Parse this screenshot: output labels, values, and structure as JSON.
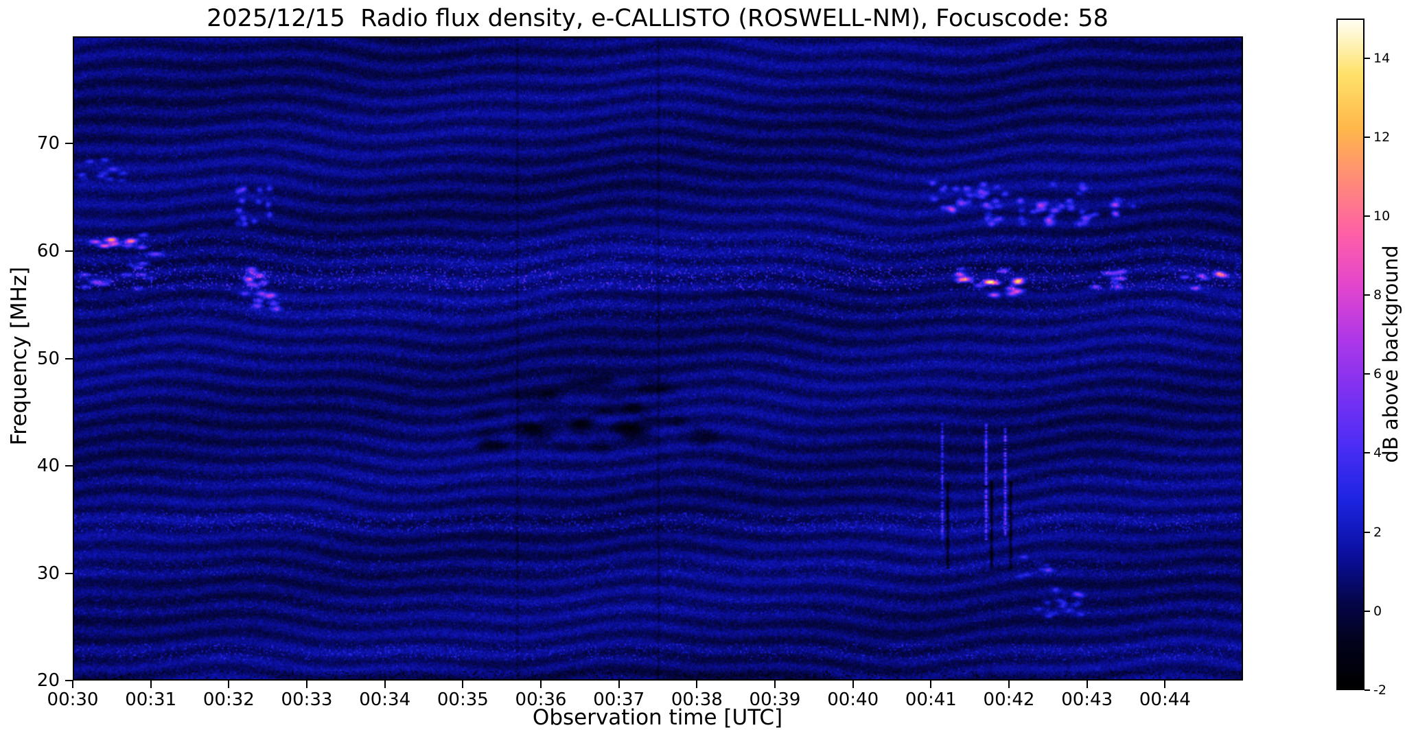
{
  "figure": {
    "date": "2025/12/15",
    "station": "ROSWELL-NM",
    "focuscode": "58"
  },
  "chart_data": {
    "type": "heatmap",
    "title": "2025/12/15  Radio flux density, e-CALLISTO (ROSWELL-NM), Focuscode: 58",
    "xlabel": "Observation time [UTC]",
    "ylabel": "Frequency [MHz]",
    "x_start": "00:30",
    "x_ticks": [
      "00:30",
      "00:31",
      "00:32",
      "00:33",
      "00:34",
      "00:35",
      "00:36",
      "00:37",
      "00:38",
      "00:39",
      "00:40",
      "00:41",
      "00:42",
      "00:43",
      "00:44"
    ],
    "x_range_minutes": [
      0,
      15
    ],
    "y_ticks": [
      20,
      30,
      40,
      50,
      60,
      70
    ],
    "y_range": [
      20,
      80
    ],
    "grid": false,
    "colorbar": {
      "label": "dB above background",
      "ticks": [
        -2,
        0,
        2,
        4,
        6,
        8,
        10,
        12,
        14
      ],
      "vmin": -2,
      "vmax": 15,
      "colormap": "gnuplot2-like",
      "stops": [
        [
          0.0,
          "#000000"
        ],
        [
          0.07,
          "#02021e"
        ],
        [
          0.13,
          "#05064b"
        ],
        [
          0.2,
          "#0a0f9e"
        ],
        [
          0.28,
          "#1c24e0"
        ],
        [
          0.36,
          "#4a2df5"
        ],
        [
          0.44,
          "#7b31f2"
        ],
        [
          0.52,
          "#ad37e8"
        ],
        [
          0.6,
          "#e145cf"
        ],
        [
          0.68,
          "#ff5fa8"
        ],
        [
          0.76,
          "#ff8b79"
        ],
        [
          0.84,
          "#ffb84a"
        ],
        [
          0.92,
          "#ffe26a"
        ],
        [
          1.0,
          "#fffef2"
        ]
      ]
    },
    "noise": {
      "seed": 42,
      "base_db": 0.7,
      "pixel_noise": 1.1,
      "speckle_prob": 0.02,
      "speckle_max": 1.3,
      "stripe_amp": 0.55,
      "stripe_ky": 0.48,
      "slow_amp": 0.25
    },
    "rfi_bands": [
      {
        "f": [
          56.4,
          58.6
        ],
        "boost": 1.0
      },
      {
        "f": [
          58.6,
          61.5
        ],
        "boost": 0.55
      },
      {
        "f": [
          53.8,
          55.8
        ],
        "boost": 0.45
      },
      {
        "f": [
          33.8,
          35.6
        ],
        "boost": 0.65
      },
      {
        "f": [
          29.8,
          31.2
        ],
        "boost": 0.4
      },
      {
        "f": [
          21.8,
          23.4
        ],
        "boost": 0.55
      },
      {
        "f": [
          26.2,
          27.6
        ],
        "boost": 0.3
      },
      {
        "f": [
          38.3,
          39.3
        ],
        "boost": 0.3
      },
      {
        "f": [
          49.5,
          50.5
        ],
        "boost": 0.25
      },
      {
        "f": [
          20.0,
          20.8
        ],
        "boost": -0.6
      }
    ],
    "features": [
      {
        "type": "spots",
        "t": [
          0.1,
          0.9
        ],
        "f": [
          60.4,
          61.6
        ],
        "intensity": 5.5,
        "count": 12,
        "sx": 2.6,
        "sy": 1.0
      },
      {
        "type": "spots",
        "t": [
          0.0,
          1.1
        ],
        "f": [
          56.5,
          60.0
        ],
        "intensity": 3.5,
        "count": 16,
        "sx": 2.6,
        "sy": 1.0
      },
      {
        "type": "spots",
        "t": [
          0.1,
          0.7
        ],
        "f": [
          66.5,
          69.0
        ],
        "intensity": 2.6,
        "count": 10,
        "sx": 2.2,
        "sy": 1.0
      },
      {
        "type": "spots",
        "t": [
          2.15,
          2.6
        ],
        "f": [
          54.5,
          58.5
        ],
        "intensity": 5.0,
        "count": 16,
        "sx": 2.4,
        "sy": 1.2
      },
      {
        "type": "spots",
        "t": [
          2.1,
          2.55
        ],
        "f": [
          62.5,
          66.5
        ],
        "intensity": 3.0,
        "count": 14,
        "sx": 1.6,
        "sy": 1.4
      },
      {
        "type": "spots",
        "t": [
          11.0,
          13.6
        ],
        "f": [
          62.5,
          66.5
        ],
        "intensity": 3.2,
        "count": 70,
        "sx": 1.8,
        "sy": 1.3
      },
      {
        "type": "spots",
        "t": [
          11.35,
          12.15
        ],
        "f": [
          55.8,
          58.5
        ],
        "intensity": 6.0,
        "count": 18,
        "sx": 2.6,
        "sy": 1.1
      },
      {
        "type": "spots",
        "t": [
          13.0,
          13.5
        ],
        "f": [
          56.5,
          58.5
        ],
        "intensity": 4.5,
        "count": 8,
        "sx": 2.4,
        "sy": 1.0
      },
      {
        "type": "spots",
        "t": [
          14.2,
          14.85
        ],
        "f": [
          56.5,
          58.2
        ],
        "intensity": 4.5,
        "count": 7,
        "sx": 2.4,
        "sy": 1.0
      },
      {
        "type": "spots",
        "t": [
          12.35,
          12.95
        ],
        "f": [
          25.5,
          28.5
        ],
        "intensity": 2.4,
        "count": 14,
        "sx": 2.2,
        "sy": 1.2
      },
      {
        "type": "spots",
        "t": [
          12.15,
          12.6
        ],
        "f": [
          29.5,
          31.5
        ],
        "intensity": 2.0,
        "count": 8,
        "sx": 2.0,
        "sy": 1.0
      },
      {
        "type": "spots",
        "t": [
          5.3,
          8.3
        ],
        "f": [
          41.5,
          48.0
        ],
        "intensity": -0.9,
        "count": 45,
        "sx": 6.0,
        "sy": 2.5
      },
      {
        "type": "bright_column",
        "t": 11.15,
        "f": [
          33.0,
          44.0
        ],
        "intensity": 4.0
      },
      {
        "type": "bright_column",
        "t": 11.7,
        "f": [
          33.0,
          44.0
        ],
        "intensity": 5.5
      },
      {
        "type": "bright_column",
        "t": 11.95,
        "f": [
          33.5,
          43.5
        ],
        "intensity": 6.0
      },
      {
        "type": "dark_column",
        "t": 11.22,
        "f": [
          30.5,
          38.5
        ],
        "depth": 2.8
      },
      {
        "type": "dark_column",
        "t": 11.77,
        "f": [
          30.5,
          38.5
        ],
        "depth": 2.8
      },
      {
        "type": "dark_column",
        "t": 12.02,
        "f": [
          30.5,
          38.5
        ],
        "depth": 2.8
      },
      {
        "type": "dark_column",
        "t": 5.68,
        "f": [
          20,
          80
        ],
        "depth": 0.9
      },
      {
        "type": "dark_column",
        "t": 7.5,
        "f": [
          20,
          80
        ],
        "depth": 0.9
      }
    ]
  }
}
